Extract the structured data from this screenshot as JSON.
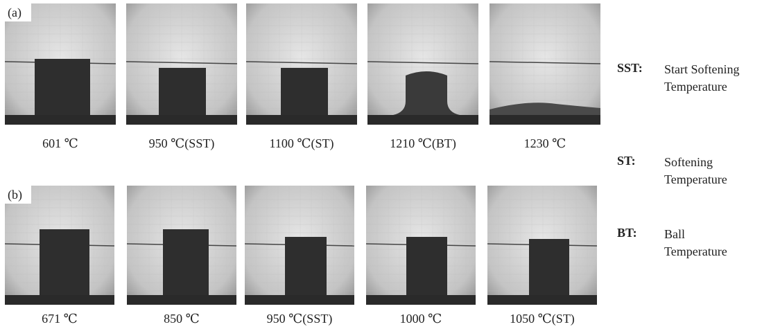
{
  "figure": {
    "rows": [
      {
        "label": "(a)",
        "panels": [
          {
            "caption": "601 ℃"
          },
          {
            "caption": "950 ℃(SST)"
          },
          {
            "caption": "1100 ℃(ST)"
          },
          {
            "caption": "1210 ℃(BT)"
          },
          {
            "caption": "1230 ℃"
          }
        ]
      },
      {
        "label": "(b)",
        "panels": [
          {
            "caption": "671 ℃"
          },
          {
            "caption": "850 ℃"
          },
          {
            "caption": "950 ℃(SST)"
          },
          {
            "caption": "1000 ℃"
          },
          {
            "caption": "1050 ℃(ST)"
          }
        ]
      }
    ],
    "legend": [
      {
        "abbr": "SST:",
        "definition": "Start Softening Temperature"
      },
      {
        "abbr": "ST:",
        "definition": "Softening Temperature"
      },
      {
        "abbr": "BT:",
        "definition": "Ball Temperature"
      }
    ]
  }
}
